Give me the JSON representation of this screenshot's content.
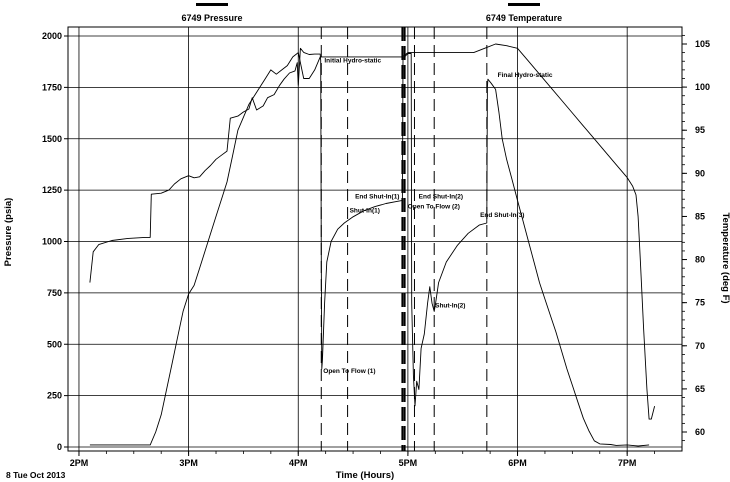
{
  "chart_data": {
    "type": "line",
    "date_label": "8 Tue Oct 2013",
    "xlabel": "Time (Hours)",
    "ylabel_left": "Pressure (psia)",
    "ylabel_right": "Temperature (deg F)",
    "xlim": [
      1.9,
      7.5
    ],
    "ylim_left": [
      0,
      2000
    ],
    "ylim_right": [
      58,
      106
    ],
    "x_ticks": [
      {
        "value": 2,
        "label": "2PM"
      },
      {
        "value": 3,
        "label": "3PM"
      },
      {
        "value": 4,
        "label": "4PM"
      },
      {
        "value": 5,
        "label": "5PM"
      },
      {
        "value": 6,
        "label": "6PM"
      },
      {
        "value": 7,
        "label": "7PM"
      }
    ],
    "y_ticks_left": [
      {
        "value": 0,
        "label": "0"
      },
      {
        "value": 250,
        "label": "250"
      },
      {
        "value": 500,
        "label": "500"
      },
      {
        "value": 750,
        "label": "750"
      },
      {
        "value": 1000,
        "label": "1000"
      },
      {
        "value": 1250,
        "label": "1250"
      },
      {
        "value": 1500,
        "label": "1500"
      },
      {
        "value": 1750,
        "label": "1750"
      },
      {
        "value": 2000,
        "label": "2000"
      }
    ],
    "y_ticks_right": [
      {
        "value": 60,
        "label": "60"
      },
      {
        "value": 65,
        "label": "65"
      },
      {
        "value": 70,
        "label": "70"
      },
      {
        "value": 75,
        "label": "75"
      },
      {
        "value": 80,
        "label": "80"
      },
      {
        "value": 85,
        "label": "85"
      },
      {
        "value": 90,
        "label": "90"
      },
      {
        "value": 95,
        "label": "95"
      },
      {
        "value": 100,
        "label": "100"
      },
      {
        "value": 105,
        "label": "105"
      }
    ],
    "grid": true,
    "legend_placement": "top",
    "series": [
      {
        "name": "6749 Pressure",
        "axis": "left",
        "color": "#000000",
        "points": [
          [
            2.1,
            800
          ],
          [
            2.13,
            950
          ],
          [
            2.18,
            985
          ],
          [
            2.3,
            1005
          ],
          [
            2.45,
            1015
          ],
          [
            2.6,
            1020
          ],
          [
            2.65,
            1020
          ],
          [
            2.66,
            1230
          ],
          [
            2.75,
            1235
          ],
          [
            2.82,
            1250
          ],
          [
            2.87,
            1280
          ],
          [
            2.93,
            1305
          ],
          [
            3.0,
            1320
          ],
          [
            3.05,
            1310
          ],
          [
            3.1,
            1315
          ],
          [
            3.15,
            1345
          ],
          [
            3.2,
            1370
          ],
          [
            3.25,
            1400
          ],
          [
            3.3,
            1420
          ],
          [
            3.35,
            1440
          ],
          [
            3.38,
            1600
          ],
          [
            3.45,
            1610
          ],
          [
            3.5,
            1630
          ],
          [
            3.55,
            1645
          ],
          [
            3.58,
            1700
          ],
          [
            3.62,
            1640
          ],
          [
            3.68,
            1660
          ],
          [
            3.72,
            1700
          ],
          [
            3.78,
            1715
          ],
          [
            3.83,
            1760
          ],
          [
            3.87,
            1790
          ],
          [
            3.92,
            1820
          ],
          [
            3.97,
            1830
          ],
          [
            3.99,
            1870
          ],
          [
            4.0,
            1760
          ],
          [
            4.02,
            1940
          ],
          [
            4.05,
            1920
          ],
          [
            4.1,
            1910
          ],
          [
            4.15,
            1912
          ],
          [
            4.2,
            1912
          ],
          [
            4.205,
            1880
          ],
          [
            4.21,
            900
          ],
          [
            4.215,
            380
          ],
          [
            4.22,
            420
          ],
          [
            4.24,
            700
          ],
          [
            4.26,
            900
          ],
          [
            4.3,
            1000
          ],
          [
            4.36,
            1060
          ],
          [
            4.42,
            1090
          ],
          [
            4.5,
            1120
          ],
          [
            4.6,
            1150
          ],
          [
            4.7,
            1170
          ],
          [
            4.8,
            1185
          ],
          [
            4.9,
            1195
          ],
          [
            4.95,
            1200
          ],
          [
            4.955,
            1890
          ],
          [
            5.0,
            1915
          ],
          [
            5.03,
            1915
          ],
          [
            5.035,
            700
          ],
          [
            5.05,
            350
          ],
          [
            5.065,
            200
          ],
          [
            5.08,
            320
          ],
          [
            5.1,
            280
          ],
          [
            5.12,
            480
          ],
          [
            5.15,
            550
          ],
          [
            5.18,
            700
          ],
          [
            5.2,
            780
          ],
          [
            5.22,
            700
          ],
          [
            5.24,
            660
          ],
          [
            5.25,
            690
          ],
          [
            5.28,
            800
          ],
          [
            5.35,
            900
          ],
          [
            5.45,
            980
          ],
          [
            5.55,
            1040
          ],
          [
            5.65,
            1080
          ],
          [
            5.72,
            1090
          ],
          [
            5.725,
            1750
          ],
          [
            5.73,
            1790
          ],
          [
            5.76,
            1770
          ],
          [
            5.8,
            1740
          ],
          [
            5.83,
            1630
          ],
          [
            5.86,
            1500
          ],
          [
            5.9,
            1400
          ],
          [
            5.95,
            1300
          ],
          [
            6.0,
            1200
          ],
          [
            6.05,
            1100
          ],
          [
            6.1,
            1000
          ],
          [
            6.15,
            900
          ],
          [
            6.2,
            800
          ],
          [
            6.25,
            720
          ],
          [
            6.3,
            640
          ],
          [
            6.35,
            560
          ],
          [
            6.4,
            470
          ],
          [
            6.45,
            380
          ],
          [
            6.5,
            300
          ],
          [
            6.55,
            220
          ],
          [
            6.6,
            140
          ],
          [
            6.65,
            80
          ],
          [
            6.7,
            30
          ],
          [
            6.75,
            15
          ],
          [
            6.85,
            12
          ],
          [
            6.9,
            8
          ],
          [
            7.0,
            10
          ],
          [
            7.1,
            5
          ],
          [
            7.2,
            10
          ]
        ]
      },
      {
        "name": "6749 Temperature",
        "axis": "right",
        "color": "#000000",
        "points": [
          [
            2.1,
            58.5
          ],
          [
            2.3,
            58.5
          ],
          [
            2.5,
            58.5
          ],
          [
            2.65,
            58.5
          ],
          [
            2.7,
            60
          ],
          [
            2.75,
            62
          ],
          [
            2.8,
            65
          ],
          [
            2.85,
            68
          ],
          [
            2.9,
            71
          ],
          [
            2.95,
            74
          ],
          [
            3.0,
            76
          ],
          [
            3.05,
            77
          ],
          [
            3.1,
            79
          ],
          [
            3.15,
            81
          ],
          [
            3.2,
            83
          ],
          [
            3.25,
            85
          ],
          [
            3.3,
            87
          ],
          [
            3.35,
            89
          ],
          [
            3.4,
            92
          ],
          [
            3.45,
            95
          ],
          [
            3.5,
            96.5
          ],
          [
            3.55,
            98
          ],
          [
            3.6,
            99
          ],
          [
            3.65,
            100
          ],
          [
            3.7,
            101
          ],
          [
            3.75,
            102
          ],
          [
            3.8,
            101.5
          ],
          [
            3.85,
            102
          ],
          [
            3.9,
            102.5
          ],
          [
            3.95,
            103.5
          ],
          [
            4.0,
            104
          ],
          [
            4.05,
            101
          ],
          [
            4.1,
            101
          ],
          [
            4.15,
            102
          ],
          [
            4.2,
            103.5
          ],
          [
            4.25,
            103.5
          ],
          [
            4.4,
            103.5
          ],
          [
            4.6,
            103.5
          ],
          [
            4.8,
            103.5
          ],
          [
            4.95,
            103.5
          ],
          [
            5.0,
            104
          ],
          [
            5.2,
            104
          ],
          [
            5.4,
            104
          ],
          [
            5.6,
            104
          ],
          [
            5.7,
            104.5
          ],
          [
            5.8,
            105
          ],
          [
            5.9,
            104.8
          ],
          [
            6.0,
            104.5
          ],
          [
            6.1,
            103
          ],
          [
            6.2,
            101.5
          ],
          [
            6.3,
            100
          ],
          [
            6.4,
            98.5
          ],
          [
            6.5,
            97
          ],
          [
            6.6,
            95.5
          ],
          [
            6.7,
            94
          ],
          [
            6.8,
            92.5
          ],
          [
            6.9,
            91
          ],
          [
            7.0,
            89.5
          ],
          [
            7.05,
            88.5
          ],
          [
            7.08,
            87.5
          ],
          [
            7.1,
            85
          ],
          [
            7.12,
            80
          ],
          [
            7.15,
            72
          ],
          [
            7.18,
            65
          ],
          [
            7.2,
            61.5
          ],
          [
            7.22,
            61.5
          ],
          [
            7.25,
            63
          ]
        ]
      }
    ],
    "annotations": [
      {
        "label": "Initial Hydro-static",
        "x": 4.22,
        "y": 1870,
        "axis": "left"
      },
      {
        "label": "Open To Flow (1)",
        "x": 4.21,
        "y": 360,
        "axis": "left"
      },
      {
        "label": "Shut-In(1)",
        "x": 4.45,
        "y": 1140,
        "axis": "left"
      },
      {
        "label": "End Shut-In(1)",
        "x": 4.5,
        "y": 1210,
        "axis": "left"
      },
      {
        "label": "End Shut-In(2)",
        "x": 5.08,
        "y": 1210,
        "axis": "left"
      },
      {
        "label": "Open To Flow (2)",
        "x": 4.98,
        "y": 1160,
        "axis": "left"
      },
      {
        "label": "Shut-In(2)",
        "x": 5.23,
        "y": 680,
        "axis": "left"
      },
      {
        "label": "End Shut-In(3)",
        "x": 5.64,
        "y": 1120,
        "axis": "left"
      },
      {
        "label": "Final Hydro-static",
        "x": 5.8,
        "y": 1800,
        "axis": "left"
      }
    ],
    "event_lines": [
      {
        "x": 4.21,
        "style": "dashed"
      },
      {
        "x": 4.45,
        "style": "dashed"
      },
      {
        "x": 4.95,
        "style": "dashed-bold"
      },
      {
        "x": 4.97,
        "style": "dashed-bold"
      },
      {
        "x": 5.06,
        "style": "dashed"
      },
      {
        "x": 5.24,
        "style": "dashed"
      },
      {
        "x": 5.72,
        "style": "dashed"
      }
    ]
  }
}
